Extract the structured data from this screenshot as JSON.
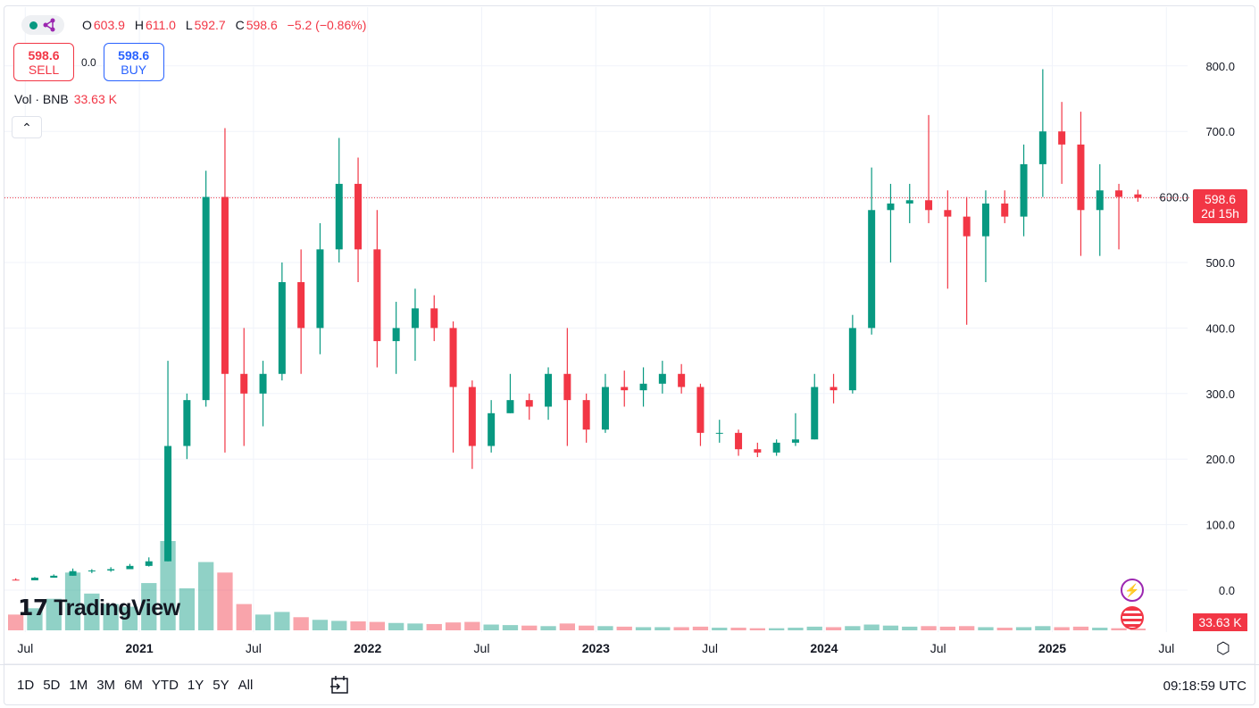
{
  "legend": {
    "symbol_status": "market-open-dot",
    "icon": "share-nodes-icon",
    "open_label": "O",
    "open": "603.9",
    "high_label": "H",
    "high": "611.0",
    "low_label": "L",
    "low": "592.7",
    "close_label": "C",
    "close": "598.6",
    "change": "−5.2 (−0.86%)"
  },
  "trade": {
    "sell_price": "598.6",
    "sell_label": "SELL",
    "spread": "0.0",
    "buy_price": "598.6",
    "buy_label": "BUY"
  },
  "volume": {
    "label": "Vol · BNB",
    "value": "33.63 K"
  },
  "logo": "TradingView",
  "price_badge": {
    "price": "598.6",
    "countdown": "2d 15h"
  },
  "volume_badge": "33.63 K",
  "ranges": [
    "1D",
    "5D",
    "1M",
    "3M",
    "6M",
    "YTD",
    "1Y",
    "5Y",
    "All"
  ],
  "clock": "09:18:59 UTC",
  "colors": {
    "up": "#089981",
    "down": "#f23645",
    "buy": "#2962ff",
    "grid": "#f0f3fa"
  },
  "chart_data": {
    "type": "candlestick",
    "title": "",
    "ylim": [
      -50,
      850
    ],
    "y_ticks": [
      "800.0",
      "700.0",
      "600.0",
      "500.0",
      "400.0",
      "300.0",
      "200.0",
      "100.0",
      "0.0"
    ],
    "y_tick_values": [
      800,
      700,
      600,
      500,
      400,
      300,
      200,
      100,
      0
    ],
    "x_ticks": [
      "Jul",
      "2021",
      "Jul",
      "2022",
      "Jul",
      "2023",
      "Jul",
      "2024",
      "Jul",
      "2025",
      "Jul"
    ],
    "x_tick_dates": [
      "2020-07",
      "2021-01",
      "2021-07",
      "2022-01",
      "2022-07",
      "2023-01",
      "2023-07",
      "2024-01",
      "2024-07",
      "2025-01",
      "2025-07"
    ],
    "last_price": 598.6,
    "grid": true,
    "start": "2020-06",
    "candles_monthly_ohlc": [
      [
        16,
        18,
        15,
        15
      ],
      [
        15,
        20,
        15,
        19
      ],
      [
        19,
        24,
        19,
        22
      ],
      [
        22,
        33,
        22,
        29
      ],
      [
        29,
        32,
        26,
        30
      ],
      [
        30,
        35,
        28,
        32
      ],
      [
        32,
        40,
        32,
        37
      ],
      [
        37,
        50,
        36,
        44
      ],
      [
        44,
        350,
        44,
        220
      ],
      [
        220,
        300,
        200,
        290
      ],
      [
        290,
        640,
        280,
        600
      ],
      [
        600,
        705,
        210,
        330
      ],
      [
        330,
        400,
        220,
        300
      ],
      [
        300,
        350,
        250,
        330
      ],
      [
        330,
        500,
        320,
        470
      ],
      [
        470,
        520,
        330,
        400
      ],
      [
        400,
        560,
        360,
        520
      ],
      [
        520,
        690,
        500,
        620
      ],
      [
        620,
        660,
        470,
        520
      ],
      [
        520,
        580,
        340,
        380
      ],
      [
        380,
        440,
        330,
        400
      ],
      [
        400,
        460,
        350,
        430
      ],
      [
        430,
        450,
        380,
        400
      ],
      [
        400,
        410,
        210,
        310
      ],
      [
        310,
        320,
        185,
        220
      ],
      [
        220,
        290,
        210,
        270
      ],
      [
        270,
        330,
        270,
        290
      ],
      [
        290,
        300,
        260,
        280
      ],
      [
        280,
        340,
        260,
        330
      ],
      [
        330,
        400,
        220,
        290
      ],
      [
        290,
        300,
        225,
        245
      ],
      [
        245,
        330,
        240,
        310
      ],
      [
        310,
        335,
        280,
        305
      ],
      [
        305,
        340,
        280,
        315
      ],
      [
        315,
        350,
        300,
        330
      ],
      [
        330,
        345,
        300,
        310
      ],
      [
        310,
        315,
        220,
        240
      ],
      [
        240,
        260,
        225,
        240
      ],
      [
        240,
        245,
        205,
        215
      ],
      [
        215,
        225,
        203,
        210
      ],
      [
        210,
        230,
        205,
        225
      ],
      [
        225,
        270,
        220,
        230
      ],
      [
        230,
        330,
        230,
        310
      ],
      [
        310,
        330,
        285,
        305
      ],
      [
        305,
        420,
        300,
        400
      ],
      [
        400,
        645,
        390,
        580
      ],
      [
        580,
        620,
        500,
        590
      ],
      [
        590,
        620,
        560,
        595
      ],
      [
        595,
        725,
        560,
        580
      ],
      [
        580,
        610,
        460,
        570
      ],
      [
        570,
        600,
        405,
        540
      ],
      [
        540,
        610,
        470,
        590
      ],
      [
        590,
        610,
        560,
        570
      ],
      [
        570,
        680,
        540,
        650
      ],
      [
        650,
        795,
        600,
        700
      ],
      [
        700,
        745,
        620,
        680
      ],
      [
        680,
        730,
        510,
        580
      ],
      [
        580,
        650,
        510,
        610
      ],
      [
        610,
        620,
        520,
        600
      ],
      [
        603.9,
        611.0,
        592.7,
        598.6
      ]
    ],
    "volume_k": [
      300,
      420,
      600,
      1100,
      700,
      500,
      450,
      900,
      1700,
      800,
      1300,
      1100,
      500,
      300,
      350,
      250,
      200,
      180,
      170,
      160,
      140,
      130,
      120,
      150,
      160,
      110,
      100,
      90,
      80,
      130,
      90,
      80,
      70,
      60,
      60,
      60,
      70,
      50,
      50,
      40,
      40,
      50,
      70,
      60,
      80,
      110,
      90,
      70,
      80,
      70,
      80,
      60,
      50,
      60,
      80,
      60,
      70,
      50,
      40,
      33.63
    ]
  }
}
